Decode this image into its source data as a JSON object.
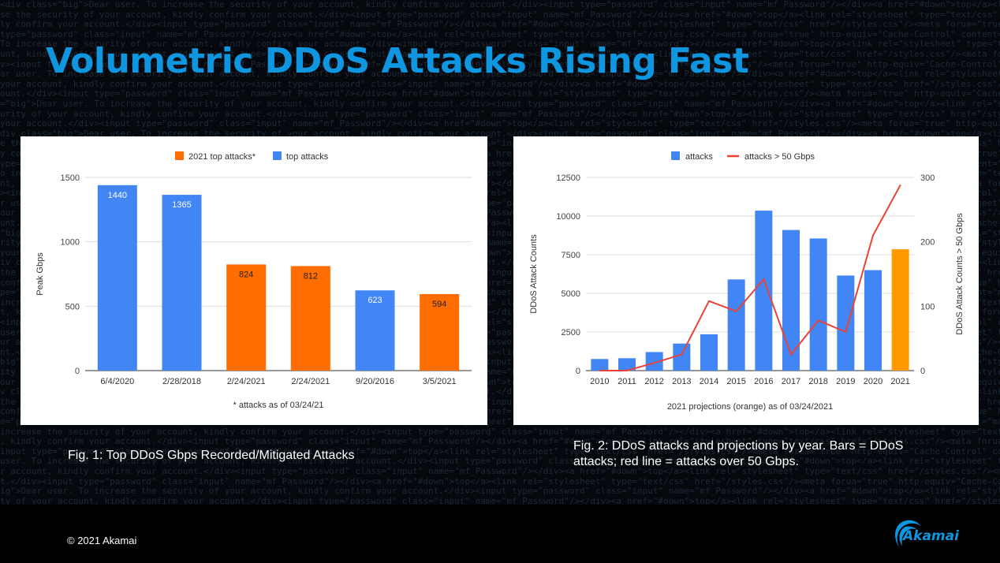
{
  "slide": {
    "title": "Volumetric DDoS Attacks Rising Fast",
    "copyright": "© 2021 Akamai",
    "logo_text": "Akamai",
    "accent_color": "#0e96e0"
  },
  "captions": {
    "fig1": "Fig. 1: Top DDoS Gbps Recorded/Mitigated Attacks",
    "fig2": "Fig. 2: DDoS attacks and projections by year. Bars = DDoS attacks; red line = attacks over 50 Gbps."
  },
  "chart_data": [
    {
      "type": "bar",
      "legend": [
        "2021 top attacks*",
        "top attacks"
      ],
      "legend_colors": [
        "#ff6d01",
        "#4285f4"
      ],
      "legend_placement": "top-center",
      "categories": [
        "6/4/2020",
        "2/28/2018",
        "2/24/2021",
        "2/24/2021",
        "9/20/2016",
        "3/5/2021"
      ],
      "values": [
        1440,
        1365,
        824,
        812,
        623,
        594
      ],
      "group": [
        "top attacks",
        "top attacks",
        "2021 top attacks*",
        "2021 top attacks*",
        "top attacks",
        "2021 top attacks*"
      ],
      "data_labels": [
        "1440",
        "1365",
        "824",
        "812",
        "623",
        "594"
      ],
      "ylabel": "Peak Gbps",
      "xlabel": "* attacks as of 03/24/21",
      "ylim": [
        0,
        1500
      ],
      "yticks": [
        0,
        500,
        1000,
        1500
      ],
      "grid": true
    },
    {
      "type": "bar",
      "legend": [
        "attacks",
        "attacks > 50 Gbps"
      ],
      "legend_colors": [
        "#4285f4",
        "#ea4335"
      ],
      "legend_placement": "top-center",
      "categories": [
        "2010",
        "2011",
        "2012",
        "2013",
        "2014",
        "2015",
        "2016",
        "2017",
        "2018",
        "2019",
        "2020",
        "2021"
      ],
      "series": [
        {
          "name": "attacks",
          "type": "bar",
          "axis": "left",
          "values": [
            750,
            800,
            1200,
            1750,
            2350,
            5900,
            10350,
            9100,
            8550,
            6150,
            6500,
            7850
          ],
          "projected": [
            false,
            false,
            false,
            false,
            false,
            false,
            false,
            false,
            false,
            false,
            false,
            true
          ]
        },
        {
          "name": "attacks > 50 Gbps",
          "type": "line",
          "axis": "right",
          "values": [
            0,
            0,
            12,
            25,
            108,
            92,
            142,
            25,
            78,
            60,
            210,
            288
          ]
        }
      ],
      "bar_color": "#4285f4",
      "projection_color": "#ff9900",
      "line_color": "#ea4335",
      "ylabel": "DDoS Attack Counts",
      "y2label": "DDoS Attack Counts > 50 Gbps",
      "xlabel": "2021 projections (orange) as of 03/24/2021",
      "ylim": [
        0,
        12500
      ],
      "yticks": [
        0,
        2500,
        5000,
        7500,
        10000,
        12500
      ],
      "y2lim": [
        0,
        300
      ],
      "y2ticks": [
        0,
        100,
        200,
        300
      ],
      "grid": true
    }
  ]
}
